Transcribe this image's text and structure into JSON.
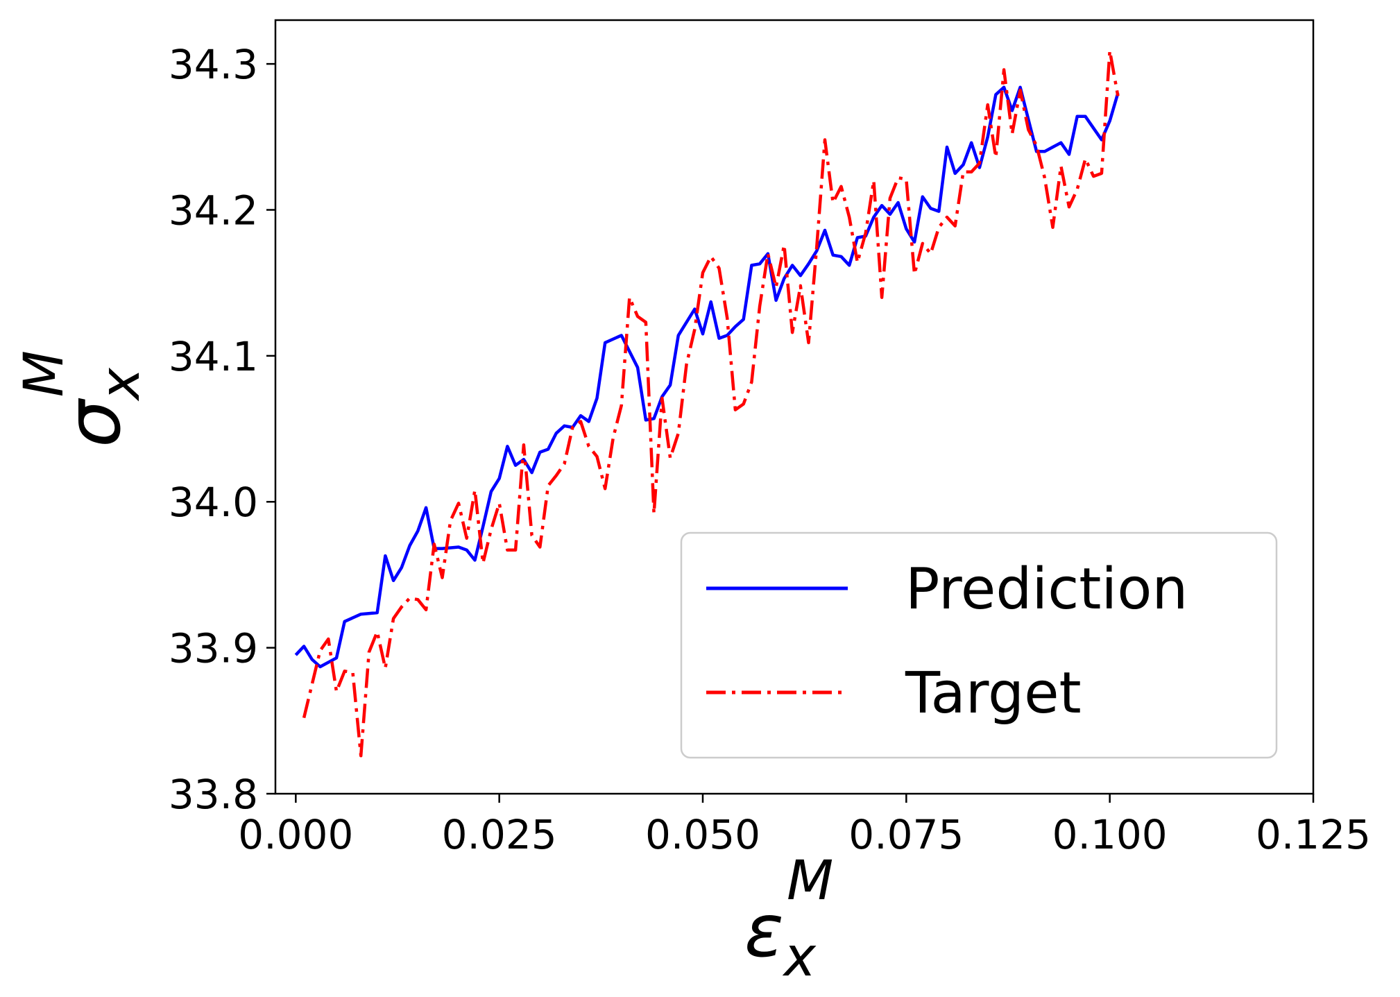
{
  "chart_data": {
    "type": "line",
    "xlabel": {
      "symbol": "ε",
      "sub": "x",
      "sup": "M"
    },
    "ylabel": {
      "symbol": "σ",
      "sub": "x",
      "sup": "M"
    },
    "xlim": [
      -0.0025,
      0.125
    ],
    "ylim": [
      33.8,
      34.33
    ],
    "xticks": [
      0.0,
      0.025,
      0.05,
      0.075,
      0.1,
      0.125
    ],
    "xtick_labels": [
      "0.000",
      "0.025",
      "0.050",
      "0.075",
      "0.100",
      "0.125"
    ],
    "yticks": [
      33.8,
      33.9,
      34.0,
      34.1,
      34.2,
      34.3
    ],
    "ytick_labels": [
      "33.8",
      "33.9",
      "34.0",
      "34.1",
      "34.2",
      "34.3"
    ],
    "grid": false,
    "legend_position": "lower-right",
    "series": [
      {
        "name": "Prediction",
        "color": "#0000ff",
        "style": "solid",
        "points": [
          [
            0.0,
            33.895
          ],
          [
            0.001,
            33.901
          ],
          [
            0.002,
            33.892
          ],
          [
            0.003,
            33.887
          ],
          [
            0.005,
            33.893
          ],
          [
            0.006,
            33.918
          ],
          [
            0.008,
            33.923
          ],
          [
            0.01,
            33.924
          ],
          [
            0.011,
            33.963
          ],
          [
            0.012,
            33.946
          ],
          [
            0.013,
            33.955
          ],
          [
            0.014,
            33.97
          ],
          [
            0.015,
            33.98
          ],
          [
            0.016,
            33.996
          ],
          [
            0.017,
            33.968
          ],
          [
            0.018,
            33.968
          ],
          [
            0.02,
            33.969
          ],
          [
            0.021,
            33.967
          ],
          [
            0.022,
            33.96
          ],
          [
            0.023,
            33.983
          ],
          [
            0.024,
            34.007
          ],
          [
            0.025,
            34.016
          ],
          [
            0.026,
            34.038
          ],
          [
            0.027,
            34.025
          ],
          [
            0.028,
            34.029
          ],
          [
            0.029,
            34.02
          ],
          [
            0.03,
            34.034
          ],
          [
            0.031,
            34.036
          ],
          [
            0.032,
            34.047
          ],
          [
            0.033,
            34.052
          ],
          [
            0.034,
            34.051
          ],
          [
            0.035,
            34.059
          ],
          [
            0.036,
            34.055
          ],
          [
            0.037,
            34.071
          ],
          [
            0.038,
            34.109
          ],
          [
            0.04,
            34.114
          ],
          [
            0.042,
            34.092
          ],
          [
            0.043,
            34.056
          ],
          [
            0.044,
            34.057
          ],
          [
            0.045,
            34.072
          ],
          [
            0.046,
            34.08
          ],
          [
            0.047,
            34.114
          ],
          [
            0.049,
            34.132
          ],
          [
            0.05,
            34.115
          ],
          [
            0.051,
            34.137
          ],
          [
            0.052,
            34.112
          ],
          [
            0.053,
            34.114
          ],
          [
            0.054,
            34.12
          ],
          [
            0.055,
            34.125
          ],
          [
            0.056,
            34.162
          ],
          [
            0.057,
            34.163
          ],
          [
            0.058,
            34.17
          ],
          [
            0.059,
            34.138
          ],
          [
            0.06,
            34.153
          ],
          [
            0.061,
            34.162
          ],
          [
            0.062,
            34.155
          ],
          [
            0.063,
            34.163
          ],
          [
            0.064,
            34.172
          ],
          [
            0.065,
            34.186
          ],
          [
            0.066,
            34.169
          ],
          [
            0.067,
            34.168
          ],
          [
            0.068,
            34.162
          ],
          [
            0.069,
            34.181
          ],
          [
            0.07,
            34.182
          ],
          [
            0.071,
            34.195
          ],
          [
            0.072,
            34.203
          ],
          [
            0.073,
            34.197
          ],
          [
            0.074,
            34.205
          ],
          [
            0.075,
            34.187
          ],
          [
            0.076,
            34.178
          ],
          [
            0.077,
            34.209
          ],
          [
            0.078,
            34.201
          ],
          [
            0.079,
            34.199
          ],
          [
            0.08,
            34.243
          ],
          [
            0.081,
            34.225
          ],
          [
            0.082,
            34.231
          ],
          [
            0.083,
            34.246
          ],
          [
            0.084,
            34.229
          ],
          [
            0.085,
            34.25
          ],
          [
            0.086,
            34.279
          ],
          [
            0.087,
            34.284
          ],
          [
            0.088,
            34.268
          ],
          [
            0.089,
            34.284
          ],
          [
            0.09,
            34.262
          ],
          [
            0.091,
            34.24
          ],
          [
            0.092,
            34.24
          ],
          [
            0.093,
            34.243
          ],
          [
            0.094,
            34.246
          ],
          [
            0.095,
            34.238
          ],
          [
            0.096,
            34.264
          ],
          [
            0.097,
            34.264
          ],
          [
            0.098,
            34.256
          ],
          [
            0.099,
            34.248
          ],
          [
            0.1,
            34.261
          ],
          [
            0.101,
            34.28
          ]
        ]
      },
      {
        "name": "Target",
        "color": "#ff0000",
        "style": "dashdot",
        "points": [
          [
            0.001,
            33.852
          ],
          [
            0.003,
            33.898
          ],
          [
            0.004,
            33.906
          ],
          [
            0.005,
            33.87
          ],
          [
            0.006,
            33.884
          ],
          [
            0.007,
            33.883
          ],
          [
            0.008,
            33.826
          ],
          [
            0.009,
            33.897
          ],
          [
            0.01,
            33.911
          ],
          [
            0.011,
            33.886
          ],
          [
            0.012,
            33.92
          ],
          [
            0.013,
            33.928
          ],
          [
            0.014,
            33.934
          ],
          [
            0.015,
            33.933
          ],
          [
            0.016,
            33.926
          ],
          [
            0.017,
            33.971
          ],
          [
            0.018,
            33.948
          ],
          [
            0.019,
            33.987
          ],
          [
            0.02,
            33.999
          ],
          [
            0.021,
            33.975
          ],
          [
            0.022,
            34.008
          ],
          [
            0.023,
            33.958
          ],
          [
            0.024,
            33.981
          ],
          [
            0.025,
            33.999
          ],
          [
            0.026,
            33.967
          ],
          [
            0.027,
            33.967
          ],
          [
            0.028,
            34.039
          ],
          [
            0.029,
            33.977
          ],
          [
            0.03,
            33.969
          ],
          [
            0.031,
            34.011
          ],
          [
            0.032,
            34.018
          ],
          [
            0.033,
            34.026
          ],
          [
            0.034,
            34.051
          ],
          [
            0.035,
            34.055
          ],
          [
            0.036,
            34.038
          ],
          [
            0.037,
            34.031
          ],
          [
            0.038,
            34.009
          ],
          [
            0.039,
            34.044
          ],
          [
            0.04,
            34.066
          ],
          [
            0.041,
            34.14
          ],
          [
            0.042,
            34.127
          ],
          [
            0.043,
            34.123
          ],
          [
            0.044,
            33.992
          ],
          [
            0.045,
            34.071
          ],
          [
            0.046,
            34.03
          ],
          [
            0.047,
            34.047
          ],
          [
            0.048,
            34.094
          ],
          [
            0.049,
            34.118
          ],
          [
            0.05,
            34.157
          ],
          [
            0.051,
            34.168
          ],
          [
            0.052,
            34.16
          ],
          [
            0.053,
            34.126
          ],
          [
            0.054,
            34.063
          ],
          [
            0.055,
            34.067
          ],
          [
            0.056,
            34.082
          ],
          [
            0.057,
            34.134
          ],
          [
            0.058,
            34.17
          ],
          [
            0.059,
            34.147
          ],
          [
            0.06,
            34.176
          ],
          [
            0.061,
            34.116
          ],
          [
            0.062,
            34.148
          ],
          [
            0.063,
            34.109
          ],
          [
            0.064,
            34.175
          ],
          [
            0.065,
            34.248
          ],
          [
            0.066,
            34.205
          ],
          [
            0.067,
            34.216
          ],
          [
            0.068,
            34.195
          ],
          [
            0.069,
            34.164
          ],
          [
            0.07,
            34.184
          ],
          [
            0.071,
            34.22
          ],
          [
            0.072,
            34.14
          ],
          [
            0.073,
            34.208
          ],
          [
            0.074,
            34.222
          ],
          [
            0.075,
            34.221
          ],
          [
            0.076,
            34.156
          ],
          [
            0.077,
            34.177
          ],
          [
            0.078,
            34.17
          ],
          [
            0.079,
            34.188
          ],
          [
            0.08,
            34.195
          ],
          [
            0.081,
            34.189
          ],
          [
            0.082,
            34.226
          ],
          [
            0.083,
            34.226
          ],
          [
            0.084,
            34.232
          ],
          [
            0.085,
            34.272
          ],
          [
            0.086,
            34.236
          ],
          [
            0.087,
            34.296
          ],
          [
            0.088,
            34.252
          ],
          [
            0.089,
            34.282
          ],
          [
            0.09,
            34.255
          ],
          [
            0.091,
            34.244
          ],
          [
            0.092,
            34.222
          ],
          [
            0.093,
            34.188
          ],
          [
            0.094,
            34.23
          ],
          [
            0.095,
            34.202
          ],
          [
            0.096,
            34.214
          ],
          [
            0.097,
            34.235
          ],
          [
            0.098,
            34.223
          ],
          [
            0.099,
            34.225
          ],
          [
            0.1,
            34.309
          ],
          [
            0.101,
            34.278
          ]
        ]
      }
    ]
  }
}
